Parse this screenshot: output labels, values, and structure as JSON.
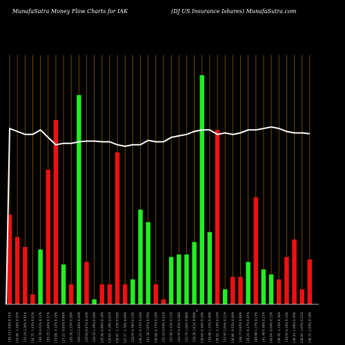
{
  "header": {
    "left": "MunafaSutra  Money Flow  Charts for IAK",
    "right": "(DJ US Insurance    Ishares) MunafaSutra.com"
  },
  "chart_data": {
    "type": "bar",
    "categories": [
      "136.74 1.94% 0.71%",
      "133.48 -1.26% 0.57%",
      "135.19 2.26% 0.61%",
      "134.75 -1.43% 0.02%",
      "136.70 0.61% 0.12%",
      "136.25 1.84% 0.21%",
      "133.08 -3.12% 0.19%",
      "127.22 -0.85% 0.66%",
      "129.28 1.53% 0.28%",
      "129.13 2.46% 0.44%",
      "126.02 0.47% 0.44%",
      "128.33 1.26% 0.28%",
      "129.38 -0.86% 0.18%",
      "129.03 -0.19% 0.01%",
      "128.97 -1.33% 0.56%",
      "127.27 -1.70% 0.09%",
      "128.97 0.78% 0.15%",
      "128.24 -0.72% 0.24%",
      "131.28 1.97% 0.76%",
      "130.98 -0.77% 0.16%",
      "131.02 0.64% 0.51%",
      "133.94 2.22% 0.11%",
      "134.55 0.45% 0.38%",
      "135.76 1.04% 0.06%",
      "138.20 1.81% 0.08%",
      "139.66 -0.34% 0.19%",
      "139.68 1.37% 0.40%",
      "136.52 -2.14% 0.23%",
      "137.97 1.05% 0.11%",
      "136.86 -0.52% 0.49%",
      "138.77 0.85% 0.08%",
      "139.24 -0.17% 0.25%",
      "140.90 1.27% 0.23%",
      "141.49 0.39% 0.27%",
      "140.64 -0.64% 0.15%",
      "139.70 -1.24% 0.18%",
      "139.91 0.16% 0.14%",
      "139.34 -1.06% 0.39%",
      "138.92 -1.07% 0.21%",
      "138.72 -2.05% 0.18%"
    ],
    "values": [
      0.36,
      0.27,
      0.23,
      0.04,
      0.22,
      0.54,
      0.74,
      0.16,
      0.08,
      0.84,
      0.17,
      0.02,
      0.08,
      0.08,
      0.61,
      0.08,
      0.1,
      0.38,
      0.33,
      0.08,
      0.02,
      0.19,
      0.2,
      0.2,
      0.25,
      0.92,
      0.29,
      0.7,
      0.06,
      0.11,
      0.11,
      0.17,
      0.43,
      0.14,
      0.12,
      0.1,
      0.19,
      0.26,
      0.06,
      0.18
    ],
    "flow": [
      "out",
      "out",
      "out",
      "out",
      "in",
      "out",
      "out",
      "in",
      "out",
      "in",
      "out",
      "in",
      "out",
      "out",
      "out",
      "out",
      "in",
      "in",
      "in",
      "out",
      "out",
      "in",
      "in",
      "in",
      "in",
      "in",
      "in",
      "out",
      "in",
      "out",
      "out",
      "in",
      "out",
      "in",
      "in",
      "out",
      "out",
      "out",
      "out",
      "out"
    ],
    "price_line": [
      0.99,
      0.97,
      0.95,
      0.95,
      0.98,
      0.93,
      0.88,
      0.89,
      0.89,
      0.9,
      0.905,
      0.905,
      0.9,
      0.9,
      0.88,
      0.87,
      0.88,
      0.88,
      0.91,
      0.9,
      0.9,
      0.93,
      0.94,
      0.95,
      0.97,
      0.98,
      0.98,
      0.95,
      0.96,
      0.95,
      0.96,
      0.98,
      0.98,
      0.99,
      1.0,
      0.99,
      0.97,
      0.96,
      0.96,
      0.955
    ],
    "price_start": 0.0,
    "ylim": [
      0,
      1
    ],
    "grid": true,
    "colors": {
      "in": "#22ee22",
      "out": "#ee1111",
      "line": "#ffffff",
      "grid": "#8b5a00",
      "background": "#000000"
    },
    "axis_mark": "0"
  }
}
